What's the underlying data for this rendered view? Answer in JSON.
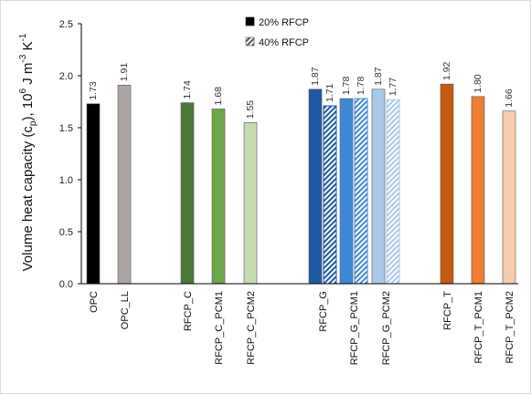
{
  "chart_data": {
    "type": "bar",
    "ylabel": {
      "main": "Volume heat capacity (c",
      "sub_p": "p",
      "mid": "), 10",
      "sup_6": "6",
      "unit_a": " J m",
      "sup_m3": "-3",
      "unit_b": " K",
      "sup_m1": "-1"
    },
    "ylim": [
      0,
      2.5
    ],
    "yticks": [
      "0.0",
      "0.5",
      "1.0",
      "1.5",
      "2.0",
      "2.5"
    ],
    "grid": false,
    "legend_position": "top-center",
    "legend": [
      {
        "label": "20% RFCP",
        "pattern": "solid"
      },
      {
        "label": "40% RFCP",
        "pattern": "hatched"
      }
    ],
    "categories": [
      "OPC",
      "OPC_LL",
      "RFCP_C",
      "RFCP_C_PCM1",
      "RFCP_C_PCM2",
      "RFCP_G",
      "RFCP_G_PCM1",
      "RFCP_G_PCM2",
      "RFCP_T",
      "RFCP_T_PCM1",
      "RFCP_T_PCM2"
    ],
    "bars": [
      {
        "category": "OPC",
        "series": "20% RFCP",
        "value": 1.73,
        "label": "1.73",
        "color": "#000000",
        "pattern": "solid"
      },
      {
        "category": "OPC_LL",
        "series": "20% RFCP",
        "value": 1.91,
        "label": "1.91",
        "color": "#aba6a3",
        "pattern": "solid"
      },
      {
        "category": "RFCP_C",
        "series": "20% RFCP",
        "value": 1.74,
        "label": "1.74",
        "color": "#4a7a36",
        "pattern": "solid"
      },
      {
        "category": "RFCP_C_PCM1",
        "series": "20% RFCP",
        "value": 1.68,
        "label": "1.68",
        "color": "#6aa64a",
        "pattern": "solid"
      },
      {
        "category": "RFCP_C_PCM2",
        "series": "20% RFCP",
        "value": 1.55,
        "label": "1.55",
        "color": "#c5dbaf",
        "pattern": "solid"
      },
      {
        "category": "RFCP_G",
        "series": "20% RFCP",
        "value": 1.87,
        "label": "1.87",
        "color": "#1f5aa6",
        "pattern": "solid"
      },
      {
        "category": "RFCP_G",
        "series": "40% RFCP",
        "value": 1.71,
        "label": "1.71",
        "color": "#1f5aa6",
        "pattern": "hatched"
      },
      {
        "category": "RFCP_G_PCM1",
        "series": "20% RFCP",
        "value": 1.78,
        "label": "1.78",
        "color": "#3f88d6",
        "pattern": "solid"
      },
      {
        "category": "RFCP_G_PCM1",
        "series": "40% RFCP",
        "value": 1.78,
        "label": "1.78",
        "color": "#3f88d6",
        "pattern": "hatched"
      },
      {
        "category": "RFCP_G_PCM2",
        "series": "20% RFCP",
        "value": 1.87,
        "label": "1.87",
        "color": "#a8c9ea",
        "pattern": "solid"
      },
      {
        "category": "RFCP_G_PCM2",
        "series": "40% RFCP",
        "value": 1.77,
        "label": "1.77",
        "color": "#a8c9ea",
        "pattern": "hatched"
      },
      {
        "category": "RFCP_T",
        "series": "20% RFCP",
        "value": 1.92,
        "label": "1.92",
        "color": "#c55a11",
        "pattern": "solid"
      },
      {
        "category": "RFCP_T_PCM1",
        "series": "20% RFCP",
        "value": 1.8,
        "label": "1.80",
        "color": "#ed7d31",
        "pattern": "solid"
      },
      {
        "category": "RFCP_T_PCM2",
        "series": "20% RFCP",
        "value": 1.66,
        "label": "1.66",
        "color": "#f8cbad",
        "pattern": "solid"
      }
    ]
  }
}
